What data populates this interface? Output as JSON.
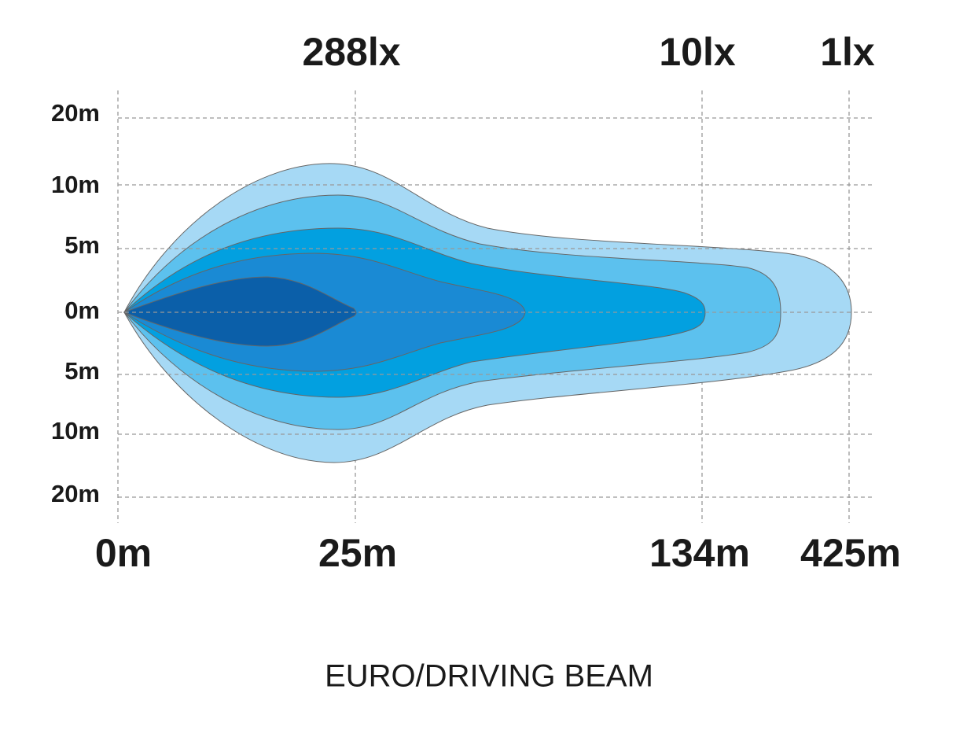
{
  "lux_labels": [
    "288lx",
    "10lx",
    "1lx"
  ],
  "distance_labels": [
    "0m",
    "25m",
    "134m",
    "425m"
  ],
  "lateral_labels": [
    "20m",
    "10m",
    "5m",
    "0m",
    "5m",
    "10m",
    "20m"
  ],
  "title": "EURO/DRIVING BEAM"
}
